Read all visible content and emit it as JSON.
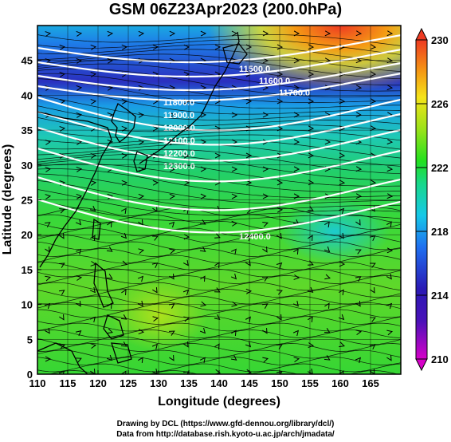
{
  "title": "GSM 06Z23Apr2023 (200.0hPa)",
  "xaxis": {
    "label": "Longitude (degrees)",
    "ticks": [
      "110",
      "115",
      "120",
      "125",
      "130",
      "135",
      "140",
      "145",
      "150",
      "155",
      "160",
      "165"
    ],
    "range": [
      110,
      170
    ]
  },
  "yaxis": {
    "label": "Latitude  (degrees)",
    "ticks": [
      "0",
      "5",
      "10",
      "15",
      "20",
      "25",
      "30",
      "35",
      "40",
      "45"
    ],
    "range": [
      0,
      50
    ]
  },
  "colorbar": {
    "ticks": [
      "230",
      "226",
      "222",
      "218",
      "214",
      "210"
    ],
    "range": [
      210,
      230
    ],
    "colors": [
      "#d600c8",
      "#2a1ab5",
      "#1f6ff0",
      "#16c8e8",
      "#18d86a",
      "#22e01f",
      "#9be21a",
      "#f5e31a",
      "#f59a14",
      "#ee3a22"
    ]
  },
  "contour_labels": [
    "11500.0",
    "11600.0",
    "11700.0",
    "11800.0",
    "11900.0",
    "12000.0",
    "12100.0",
    "12200.0",
    "12300.0",
    "12400.0"
  ],
  "credits": {
    "line1": "Drawing by DCL (https://www.gfd-dennou.org/library/dcl/)",
    "line2": "Data from http://database.rish.kyoto-u.ac.jp/arch/jmadata/"
  }
}
